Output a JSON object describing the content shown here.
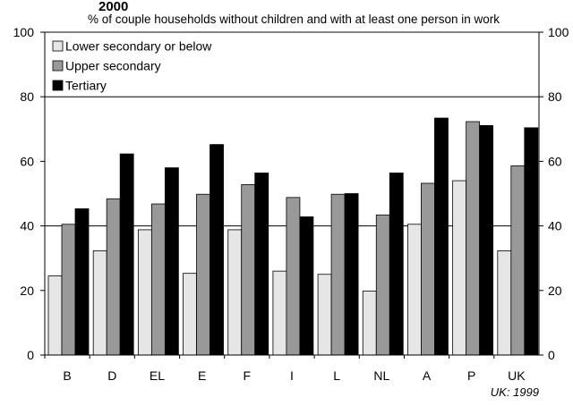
{
  "chart_data": {
    "type": "bar",
    "title": "2000",
    "subtitle": "% of couple households without children and with at least one person in work",
    "categories": [
      "B",
      "D",
      "EL",
      "E",
      "F",
      "I",
      "L",
      "NL",
      "A",
      "P",
      "UK"
    ],
    "series": [
      {
        "name": "Lower secondary or below",
        "color": "#e6e6e6",
        "values": [
          24.5,
          32.3,
          38.8,
          25.3,
          38.8,
          26.0,
          25.0,
          19.8,
          40.5,
          54.0,
          32.3
        ]
      },
      {
        "name": "Upper secondary",
        "color": "#999999",
        "values": [
          40.5,
          48.4,
          46.8,
          49.8,
          52.8,
          48.8,
          49.8,
          43.4,
          53.2,
          72.3,
          58.6
        ]
      },
      {
        "name": "Tertiary",
        "color": "#000000",
        "values": [
          45.3,
          62.3,
          58.0,
          65.2,
          56.4,
          42.8,
          50.0,
          56.4,
          73.4,
          71.1,
          70.4
        ]
      }
    ],
    "ylim": [
      0,
      100
    ],
    "yticks": [
      0,
      20,
      40,
      60,
      80,
      100
    ],
    "gridlines": [
      40,
      80
    ],
    "legend_position": "top-left",
    "footnote": "UK: 1999",
    "xlabel": "",
    "ylabel": ""
  }
}
